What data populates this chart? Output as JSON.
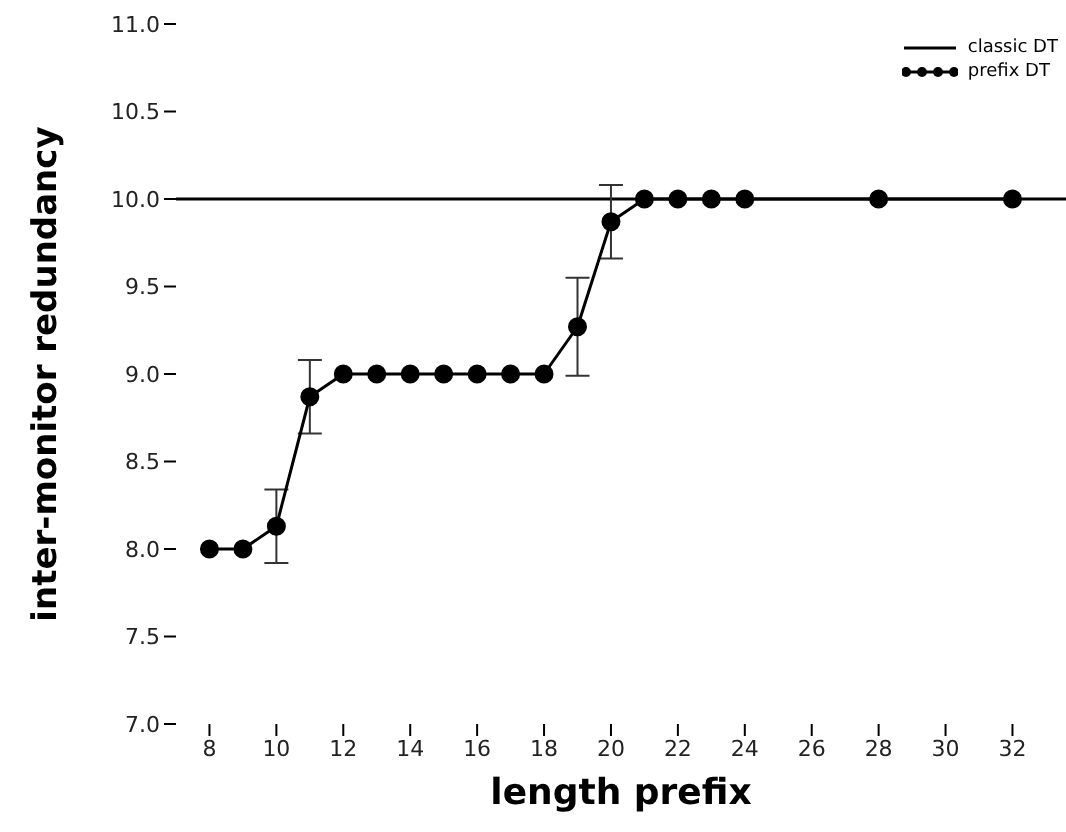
{
  "chart_data": {
    "type": "line",
    "xlabel": "length prefix",
    "ylabel": "inter-monitor redundancy",
    "xlim": [
      7,
      33.6
    ],
    "xticks": [
      8,
      10,
      12,
      14,
      16,
      18,
      20,
      22,
      24,
      26,
      28,
      30,
      32
    ],
    "ylim": [
      7,
      11
    ],
    "yticks": [
      {
        "value": 7,
        "label": "7.0"
      },
      {
        "value": 7.5,
        "label": "7.5"
      },
      {
        "value": 8,
        "label": "8.0"
      },
      {
        "value": 8.5,
        "label": "8.5"
      },
      {
        "value": 9,
        "label": "9.0"
      },
      {
        "value": 9.5,
        "label": "9.5"
      },
      {
        "value": 10,
        "label": "10.0"
      },
      {
        "value": 10.5,
        "label": "10.5"
      },
      {
        "value": 11,
        "label": "11.0"
      }
    ],
    "grid": false,
    "legend": "top right",
    "series": [
      {
        "name": "classic DT",
        "color": "#000000",
        "marker": "none",
        "x": [
          7,
          33.6
        ],
        "values": [
          10,
          10
        ]
      },
      {
        "name": "prefix DT",
        "color": "#000000",
        "marker": "circle",
        "x": [
          8,
          9,
          10,
          11,
          12,
          13,
          14,
          15,
          16,
          17,
          18,
          19,
          20,
          21,
          22,
          23,
          24,
          28,
          32
        ],
        "values": [
          8,
          8,
          8.13,
          8.87,
          9,
          9,
          9,
          9,
          9,
          9,
          9,
          9.27,
          9.87,
          10,
          10,
          10,
          10,
          10,
          10
        ],
        "errors": [
          null,
          null,
          0.21,
          0.21,
          null,
          null,
          null,
          null,
          null,
          null,
          null,
          0.28,
          0.21,
          null,
          null,
          null,
          null,
          null,
          null
        ]
      }
    ]
  }
}
